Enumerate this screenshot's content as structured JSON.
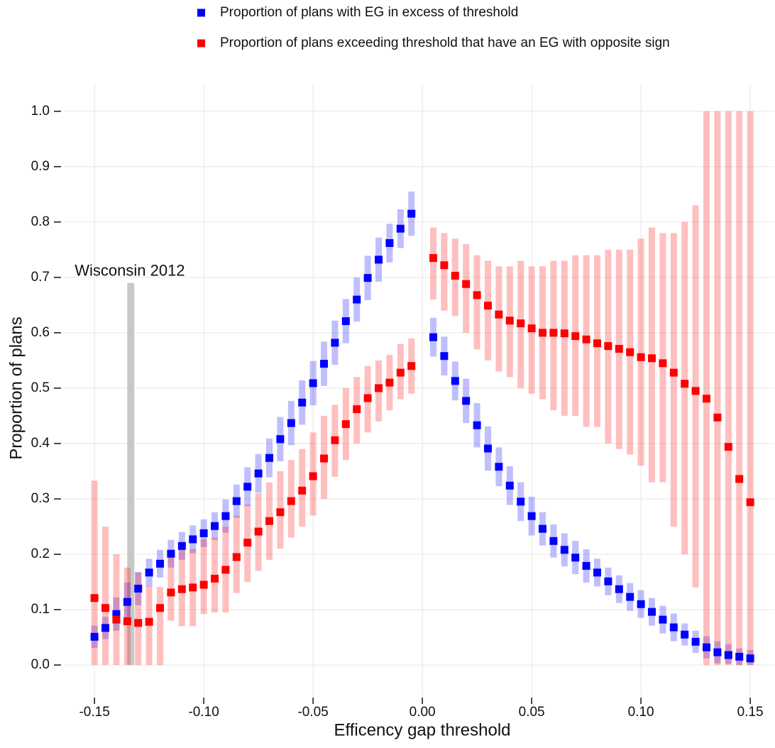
{
  "chart_data": {
    "type": "errorbar-scatter",
    "xlabel": "Efficency gap threshold",
    "ylabel": "Proportion of plans",
    "xlim": [
      -0.164,
      0.161
    ],
    "ylim": [
      -0.055,
      1.051
    ],
    "xticks": [
      -0.15,
      {
        "value": -0.1,
        "label": "-0.10"
      },
      -0.05,
      {
        "value": 0,
        "label": "0.00"
      },
      0.05,
      {
        "value": 0.1,
        "label": "0.10"
      },
      0.15
    ],
    "yticks": [
      {
        "value": 0,
        "label": "0.0"
      },
      0.1,
      0.2,
      0.3,
      0.4,
      0.5,
      0.6,
      0.7,
      0.8,
      0.9,
      {
        "value": 1,
        "label": "1.0"
      }
    ],
    "grid": true,
    "legend": "top",
    "x": [
      -0.15,
      -0.145,
      -0.14,
      -0.135,
      -0.13,
      -0.125,
      -0.12,
      -0.115,
      -0.11,
      -0.105,
      -0.1,
      -0.095,
      -0.09,
      -0.085,
      -0.08,
      -0.075,
      -0.07,
      -0.065,
      -0.06,
      -0.055,
      -0.05,
      -0.045,
      -0.04,
      -0.035,
      -0.03,
      -0.025,
      -0.02,
      -0.015,
      -0.01,
      -0.005,
      0.005,
      0.01,
      0.015,
      0.02,
      0.025,
      0.03,
      0.035,
      0.04,
      0.045,
      0.05,
      0.055,
      0.06,
      0.065,
      0.07,
      0.075,
      0.08,
      0.085,
      0.09,
      0.095,
      0.1,
      0.105,
      0.11,
      0.115,
      0.12,
      0.125,
      0.13,
      0.135,
      0.14,
      0.145,
      0.15
    ],
    "series": [
      {
        "name": "Proportion of plans with EG in excess of threshold",
        "color": "#0000ff",
        "values": [
          0.051,
          0.067,
          0.092,
          0.114,
          0.138,
          0.167,
          0.183,
          0.201,
          0.215,
          0.227,
          0.238,
          0.251,
          0.269,
          0.296,
          0.322,
          0.346,
          0.374,
          0.408,
          0.437,
          0.474,
          0.509,
          0.544,
          0.582,
          0.621,
          0.66,
          0.699,
          0.732,
          0.762,
          0.788,
          0.815,
          0.592,
          0.558,
          0.513,
          0.477,
          0.433,
          0.391,
          0.358,
          0.324,
          0.295,
          0.269,
          0.246,
          0.224,
          0.208,
          0.194,
          0.179,
          0.167,
          0.151,
          0.137,
          0.123,
          0.11,
          0.096,
          0.082,
          0.068,
          0.055,
          0.042,
          0.032,
          0.023,
          0.018,
          0.015,
          0.012
        ],
        "lower": [
          0.031,
          0.047,
          0.062,
          0.079,
          0.108,
          0.142,
          0.158,
          0.176,
          0.19,
          0.202,
          0.213,
          0.226,
          0.239,
          0.266,
          0.287,
          0.311,
          0.339,
          0.368,
          0.397,
          0.434,
          0.469,
          0.504,
          0.542,
          0.581,
          0.62,
          0.659,
          0.692,
          0.727,
          0.753,
          0.775,
          0.557,
          0.523,
          0.478,
          0.437,
          0.393,
          0.351,
          0.323,
          0.289,
          0.26,
          0.234,
          0.216,
          0.194,
          0.178,
          0.164,
          0.149,
          0.142,
          0.126,
          0.112,
          0.098,
          0.085,
          0.071,
          0.057,
          0.043,
          0.035,
          0.022,
          0.012,
          0.003,
          0.002,
          0,
          0
        ],
        "upper": [
          0.071,
          0.087,
          0.122,
          0.149,
          0.168,
          0.192,
          0.208,
          0.226,
          0.24,
          0.252,
          0.263,
          0.276,
          0.299,
          0.326,
          0.357,
          0.381,
          0.409,
          0.448,
          0.477,
          0.514,
          0.549,
          0.584,
          0.622,
          0.661,
          0.7,
          0.739,
          0.772,
          0.797,
          0.823,
          0.855,
          0.627,
          0.593,
          0.548,
          0.517,
          0.473,
          0.431,
          0.393,
          0.359,
          0.33,
          0.304,
          0.276,
          0.254,
          0.238,
          0.224,
          0.209,
          0.192,
          0.176,
          0.162,
          0.148,
          0.135,
          0.121,
          0.107,
          0.093,
          0.075,
          0.062,
          0.052,
          0.043,
          0.038,
          0.03,
          0.027
        ]
      },
      {
        "name": "Proportion of plans exceeding threshold that have an EG with opposite sign",
        "color": "#ff0000",
        "values": [
          0.121,
          0.103,
          0.082,
          0.079,
          0.076,
          0.078,
          0.103,
          0.131,
          0.137,
          0.14,
          0.145,
          0.156,
          0.172,
          0.195,
          0.221,
          0.241,
          0.26,
          0.276,
          0.296,
          0.315,
          0.341,
          0.373,
          0.406,
          0.435,
          0.462,
          0.482,
          0.5,
          0.51,
          0.528,
          0.54,
          0.735,
          0.722,
          0.703,
          0.688,
          0.668,
          0.649,
          0.633,
          0.622,
          0.617,
          0.608,
          0.6,
          0.6,
          0.599,
          0.594,
          0.588,
          0.581,
          0.576,
          0.571,
          0.565,
          0.556,
          0.554,
          0.545,
          0.528,
          0.508,
          0.495,
          0.481,
          0.447,
          0.394,
          0.336,
          0.294
        ],
        "lower": [
          0,
          0,
          0,
          0,
          0,
          0,
          0,
          0.08,
          0.07,
          0.07,
          0.092,
          0.095,
          0.095,
          0.13,
          0.15,
          0.17,
          0.19,
          0.21,
          0.23,
          0.25,
          0.27,
          0.3,
          0.34,
          0.37,
          0.4,
          0.42,
          0.44,
          0.46,
          0.48,
          0.49,
          0.66,
          0.64,
          0.63,
          0.6,
          0.57,
          0.55,
          0.53,
          0.52,
          0.5,
          0.49,
          0.48,
          0.46,
          0.45,
          0.45,
          0.43,
          0.43,
          0.4,
          0.39,
          0.38,
          0.36,
          0.33,
          0.33,
          0.25,
          0.2,
          0.14,
          0,
          0,
          0,
          0,
          0
        ],
        "upper": [
          0.333,
          0.25,
          0.2,
          0.176,
          0.167,
          0.143,
          0.141,
          0.2,
          0.21,
          0.21,
          0.227,
          0.23,
          0.25,
          0.27,
          0.29,
          0.31,
          0.33,
          0.35,
          0.37,
          0.39,
          0.42,
          0.45,
          0.47,
          0.5,
          0.52,
          0.54,
          0.55,
          0.56,
          0.58,
          0.59,
          0.79,
          0.78,
          0.77,
          0.76,
          0.74,
          0.73,
          0.72,
          0.72,
          0.73,
          0.72,
          0.72,
          0.73,
          0.73,
          0.74,
          0.74,
          0.74,
          0.75,
          0.75,
          0.75,
          0.77,
          0.79,
          0.78,
          0.78,
          0.8,
          0.83,
          1,
          1,
          1,
          1,
          1
        ]
      }
    ],
    "annotations": [
      {
        "text": "Wisconsin 2012",
        "x": -0.1334,
        "y": 0.69
      }
    ]
  }
}
